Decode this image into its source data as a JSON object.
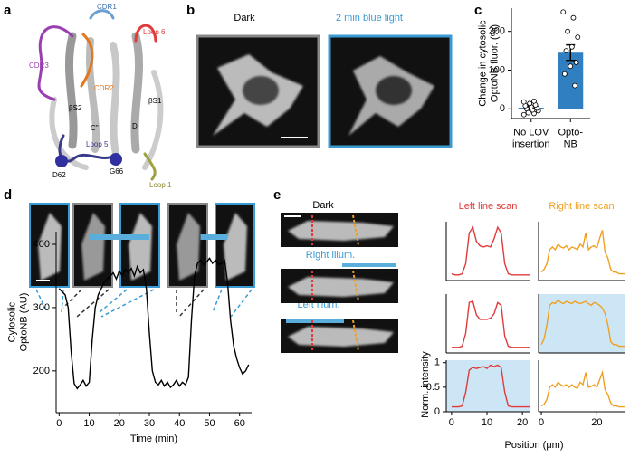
{
  "figure": {
    "panel_labels": [
      "a",
      "b",
      "c",
      "d",
      "e"
    ],
    "structure_labels": [
      "CDR1",
      "Loop 6",
      "CDR3",
      "CDR2",
      "βS2",
      "βS1",
      "C''",
      "D",
      "Loop 5",
      "D62",
      "G66",
      "Loop 1"
    ],
    "image_labels_b": [
      "Dark",
      "2 min blue light"
    ],
    "image_labels_e": [
      "Dark",
      "Right illum.",
      "Left illum."
    ],
    "xlabel_e": "Position (μm)",
    "ylabel_e": "Norm. intensity"
  },
  "chart_data": [
    {
      "type": "bar",
      "ylabel": "Change in cytosolic\nOptoNB fluor. (%)",
      "categories": [
        "No LOV\ninsertion",
        "Opto-\nNB"
      ],
      "values": [
        3,
        145
      ],
      "errors": [
        4,
        20
      ],
      "color": "#2f7fc1",
      "points": [
        [
          -15,
          -12,
          -8,
          -5,
          -3,
          0,
          2,
          5,
          8,
          10,
          14,
          18,
          20,
          -10
        ],
        [
          250,
          235,
          200,
          185,
          160,
          150,
          120,
          110,
          90,
          60
        ]
      ],
      "ylim": [
        -25,
        260
      ],
      "yticks": [
        0,
        100,
        200
      ]
    },
    {
      "type": "line",
      "xlabel": "Time (min)",
      "ylabel": "Cytosolic\nOptoNB (AU)",
      "color": "#000000",
      "span_color": "#5aaedb",
      "spans": [
        [
          10,
          30
        ],
        [
          47,
          56
        ]
      ],
      "x": [
        0,
        1,
        2,
        3,
        4,
        5,
        6,
        7,
        8,
        9,
        10,
        11,
        12,
        13,
        14,
        15,
        16,
        17,
        18,
        19,
        20,
        21,
        22,
        23,
        24,
        25,
        26,
        27,
        28,
        29,
        30,
        31,
        32,
        33,
        34,
        35,
        36,
        37,
        38,
        39,
        40,
        41,
        42,
        43,
        44,
        45,
        46,
        47,
        48,
        49,
        50,
        51,
        52,
        53,
        54,
        55,
        56,
        57,
        58,
        59,
        60,
        61,
        62,
        63
      ],
      "values": [
        330,
        325,
        320,
        300,
        230,
        180,
        172,
        178,
        185,
        176,
        182,
        250,
        300,
        320,
        330,
        340,
        345,
        350,
        355,
        345,
        358,
        350,
        360,
        355,
        362,
        350,
        365,
        355,
        360,
        330,
        260,
        200,
        182,
        178,
        185,
        176,
        182,
        174,
        178,
        185,
        176,
        182,
        178,
        190,
        280,
        350,
        370,
        375,
        368,
        372,
        378,
        370,
        375,
        368,
        370,
        375,
        340,
        280,
        240,
        220,
        205,
        195,
        200,
        210
      ],
      "xlim": [
        -1,
        64
      ],
      "ylim": [
        134,
        420
      ],
      "xticks": [
        0,
        10,
        20,
        30,
        40,
        50,
        60
      ],
      "yticks": [
        200,
        300,
        400
      ]
    },
    {
      "type": "line",
      "title": "Left line scan",
      "color": "#e03a3a",
      "shaded": false,
      "x": [
        0,
        1,
        2,
        3,
        4,
        5,
        6,
        7,
        8,
        9,
        10,
        11,
        12,
        13,
        14,
        15,
        16,
        17,
        18,
        19,
        20,
        21,
        22
      ],
      "values": [
        0.12,
        0.1,
        0.1,
        0.12,
        0.3,
        0.85,
        0.95,
        0.7,
        0.62,
        0.6,
        0.62,
        0.6,
        0.75,
        0.95,
        0.85,
        0.3,
        0.12,
        0.1,
        0.1,
        0.1,
        0.1,
        0.1,
        0.1
      ],
      "xlim": [
        -1.5,
        22
      ],
      "ylim": [
        0,
        1.05
      ]
    },
    {
      "type": "line",
      "title": "Right line scan",
      "color": "#f0a020",
      "shaded": false,
      "x": [
        0,
        1,
        2,
        3,
        4,
        5,
        6,
        7,
        8,
        9,
        10,
        11,
        12,
        13,
        14,
        15,
        16,
        17,
        18,
        19,
        20,
        21,
        22,
        23,
        24,
        25,
        26,
        27,
        28,
        29,
        30
      ],
      "values": [
        0.15,
        0.2,
        0.3,
        0.55,
        0.6,
        0.55,
        0.65,
        0.6,
        0.58,
        0.62,
        0.55,
        0.6,
        0.58,
        0.55,
        0.65,
        0.6,
        0.85,
        0.55,
        0.6,
        0.62,
        0.58,
        0.75,
        0.9,
        0.5,
        0.4,
        0.2,
        0.15,
        0.15,
        0.12,
        0.12,
        0.12
      ],
      "xlim": [
        -1,
        30
      ],
      "ylim": [
        0,
        1.05
      ]
    },
    {
      "type": "line",
      "color": "#e03a3a",
      "shaded": false,
      "x": [
        0,
        1,
        2,
        3,
        4,
        5,
        6,
        7,
        8,
        9,
        10,
        11,
        12,
        13,
        14,
        15,
        16,
        17,
        18,
        19,
        20,
        21,
        22
      ],
      "values": [
        0.1,
        0.1,
        0.1,
        0.12,
        0.35,
        0.9,
        0.92,
        0.68,
        0.6,
        0.6,
        0.6,
        0.62,
        0.7,
        0.9,
        0.85,
        0.3,
        0.12,
        0.1,
        0.1,
        0.1,
        0.1,
        0.1,
        0.1
      ],
      "xlim": [
        -1.5,
        22
      ],
      "ylim": [
        0,
        1.05
      ]
    },
    {
      "type": "line",
      "color": "#f0a020",
      "shaded": true,
      "x": [
        0,
        1,
        2,
        3,
        4,
        5,
        6,
        7,
        8,
        9,
        10,
        11,
        12,
        13,
        14,
        15,
        16,
        17,
        18,
        19,
        20,
        21,
        22,
        23,
        24,
        25,
        26,
        27,
        28,
        29,
        30
      ],
      "values": [
        0.15,
        0.25,
        0.5,
        0.85,
        0.9,
        0.88,
        0.95,
        0.9,
        0.88,
        0.92,
        0.9,
        0.88,
        0.92,
        0.9,
        0.88,
        0.9,
        0.92,
        0.88,
        0.85,
        0.9,
        0.88,
        0.85,
        0.8,
        0.7,
        0.5,
        0.2,
        0.15,
        0.15,
        0.12,
        0.12,
        0.12
      ],
      "xlim": [
        -1,
        30
      ],
      "ylim": [
        0,
        1.05
      ]
    },
    {
      "type": "line",
      "color": "#e03a3a",
      "shaded": true,
      "x": [
        0,
        1,
        2,
        3,
        4,
        5,
        6,
        7,
        8,
        9,
        10,
        11,
        12,
        13,
        14,
        15,
        16,
        17,
        18,
        19,
        20,
        21,
        22
      ],
      "values": [
        0.1,
        0.1,
        0.1,
        0.12,
        0.4,
        0.85,
        0.9,
        0.88,
        0.9,
        0.92,
        0.88,
        0.95,
        0.92,
        0.95,
        0.9,
        0.4,
        0.12,
        0.1,
        0.1,
        0.1,
        0.1,
        0.1,
        0.1
      ],
      "xlim": [
        -1.5,
        22
      ],
      "ylim": [
        0,
        1.05
      ],
      "xticks": [
        0,
        10,
        20
      ],
      "yticks": [
        0,
        0.5,
        1
      ]
    },
    {
      "type": "line",
      "color": "#f0a020",
      "shaded": false,
      "x": [
        0,
        1,
        2,
        3,
        4,
        5,
        6,
        7,
        8,
        9,
        10,
        11,
        12,
        13,
        14,
        15,
        16,
        17,
        18,
        19,
        20,
        21,
        22,
        23,
        24,
        25,
        26,
        27,
        28,
        29,
        30
      ],
      "values": [
        0.12,
        0.15,
        0.25,
        0.5,
        0.55,
        0.5,
        0.6,
        0.55,
        0.52,
        0.55,
        0.5,
        0.55,
        0.5,
        0.48,
        0.6,
        0.55,
        0.8,
        0.5,
        0.52,
        0.55,
        0.5,
        0.65,
        0.8,
        0.45,
        0.35,
        0.18,
        0.12,
        0.12,
        0.1,
        0.1,
        0.1
      ],
      "xlim": [
        -1,
        30
      ],
      "ylim": [
        0,
        1.05
      ],
      "xticks": [
        0,
        20
      ]
    }
  ]
}
